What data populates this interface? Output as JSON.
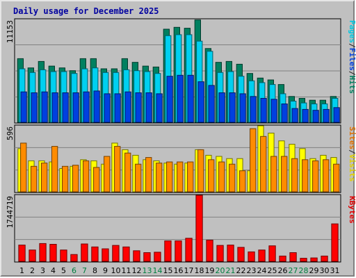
{
  "chart_data": {
    "type": "bar",
    "title": "Daily usage for December 2025",
    "categories": [
      "1",
      "2",
      "3",
      "4",
      "5",
      "6",
      "7",
      "8",
      "9",
      "10",
      "11",
      "12",
      "13",
      "14",
      "15",
      "16",
      "17",
      "18",
      "19",
      "20",
      "21",
      "22",
      "23",
      "24",
      "25",
      "26",
      "27",
      "28",
      "29",
      "30",
      "31"
    ],
    "weekend_days": [
      "6",
      "7",
      "13",
      "14",
      "20",
      "21",
      "27",
      "28"
    ],
    "panels": [
      {
        "id": "hits_panel",
        "max_label": "11153",
        "ymax": 11153,
        "legend": [
          {
            "text": "Pages",
            "color": "#00c8e0"
          },
          {
            "text": "/",
            "color": "#202020"
          },
          {
            "text": "Files",
            "color": "#0040e0"
          },
          {
            "text": "/",
            "color": "#202020"
          },
          {
            "text": "Hits",
            "color": "#008060"
          }
        ],
        "series": [
          {
            "name": "Hits",
            "color": "#008060",
            "values": [
              6900,
              5900,
              6600,
              6100,
              5900,
              5600,
              6900,
              6900,
              5800,
              5800,
              6900,
              6500,
              6100,
              6000,
              10100,
              10300,
              10200,
              11100,
              8000,
              6500,
              6600,
              6300,
              5300,
              4800,
              4600,
              4100,
              2800,
              2600,
              2400,
              2400,
              2800
            ]
          },
          {
            "name": "Files",
            "color": "#00d0f0",
            "values": [
              5800,
              5400,
              5700,
              5500,
              5500,
              5300,
              5800,
              5900,
              5400,
              5400,
              5700,
              5600,
              5500,
              5300,
              9400,
              9500,
              9500,
              8800,
              7700,
              5400,
              5500,
              5000,
              4500,
              4300,
              4100,
              3100,
              2300,
              2100,
              2000,
              2000,
              2600
            ]
          },
          {
            "name": "Pages",
            "color": "#0040e0",
            "values": [
              3300,
              3200,
              3300,
              3200,
              3200,
              3200,
              3300,
              3400,
              3100,
              3100,
              3300,
              3200,
              3200,
              3100,
              5000,
              5100,
              5100,
              4400,
              4000,
              3200,
              3200,
              3100,
              2800,
              2600,
              2500,
              2000,
              1500,
              1400,
              1300,
              1400,
              1600
            ]
          }
        ]
      },
      {
        "id": "visits_panel",
        "max_label": "596",
        "ymax": 596,
        "legend": [
          {
            "text": "Sites",
            "color": "#e07000"
          },
          {
            "text": "/",
            "color": "#202020"
          },
          {
            "text": "Visits",
            "color": "#e0d000"
          }
        ],
        "series": [
          {
            "name": "Visits",
            "color": "#ffff00",
            "values": [
              390,
              280,
              280,
              270,
              210,
              230,
              290,
              280,
              250,
              440,
              380,
              330,
              290,
              280,
              260,
              250,
              260,
              380,
              330,
              320,
              300,
              300,
              190,
              596,
              530,
              460,
              430,
              390,
              300,
              330,
              310
            ]
          },
          {
            "name": "Sites",
            "color": "#ff8c00",
            "values": [
              440,
              230,
              260,
              410,
              230,
              240,
              280,
              220,
              320,
              410,
              350,
              250,
              310,
              260,
              270,
              270,
              270,
              380,
              290,
              270,
              250,
              190,
              570,
              500,
              320,
              320,
              300,
              290,
              280,
              290,
              250
            ]
          }
        ]
      },
      {
        "id": "kbytes_panel",
        "max_label": "1744719",
        "ymax": 1744719,
        "legend": [
          {
            "text": "KBytes",
            "color": "#e00000"
          }
        ],
        "series": [
          {
            "name": "KBytes",
            "color": "#ff0000",
            "values": [
              430000,
              300000,
              470000,
              450000,
              300000,
              180000,
              460000,
              380000,
              330000,
              420000,
              380000,
              280000,
              230000,
              240000,
              540000,
              540000,
              610000,
              1744719,
              560000,
              420000,
              430000,
              370000,
              250000,
              300000,
              410000,
              140000,
              230000,
              80000,
              90000,
              140000,
              990000
            ]
          }
        ]
      }
    ]
  }
}
